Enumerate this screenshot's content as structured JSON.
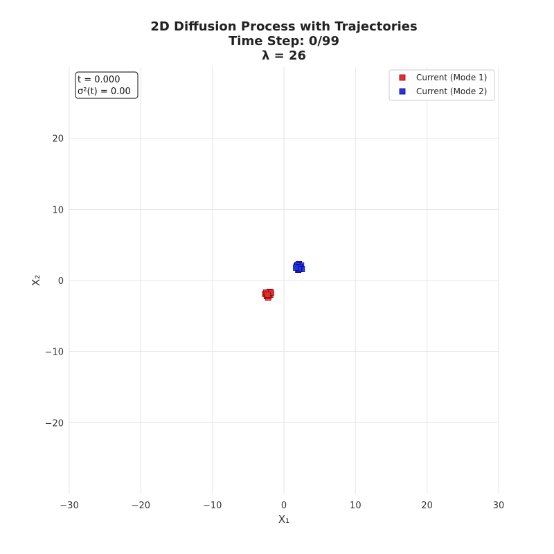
{
  "chart_data": {
    "type": "scatter",
    "title": "2D Diffusion Process with Trajectories",
    "subtitle_lines": [
      "Time Step: 0/99",
      "λ = 26"
    ],
    "xlabel": "X₁",
    "ylabel": "X₂",
    "xlim": [
      -30,
      30
    ],
    "ylim": [
      -30,
      30
    ],
    "xticks": [
      -30,
      -20,
      -10,
      0,
      10,
      20,
      30
    ],
    "yticks": [
      -20,
      -10,
      0,
      10,
      20
    ],
    "grid": true,
    "legend_position": "top-right",
    "info_box": {
      "lines": [
        "t = 0.000",
        "σ²(t) = 0.00"
      ],
      "position": "top-left"
    },
    "series": [
      {
        "name": "Current (Mode 1)",
        "color": "#e53030",
        "edge_color": "#8b0000",
        "marker": "square",
        "points": [
          [
            -2.6,
            -1.9
          ],
          [
            -2.3,
            -1.8
          ],
          [
            -2.0,
            -1.6
          ],
          [
            -2.4,
            -2.2
          ],
          [
            -1.9,
            -2.0
          ],
          [
            -2.2,
            -2.4
          ],
          [
            -2.5,
            -1.7
          ],
          [
            -2.1,
            -2.1
          ],
          [
            -1.8,
            -1.7
          ],
          [
            -2.3,
            -2.0
          ]
        ]
      },
      {
        "name": "Current (Mode 2)",
        "color": "#2535e0",
        "edge_color": "#00008b",
        "marker": "square",
        "points": [
          [
            1.8,
            2.0
          ],
          [
            2.1,
            2.3
          ],
          [
            2.3,
            1.7
          ],
          [
            2.0,
            1.5
          ],
          [
            2.4,
            2.1
          ],
          [
            1.9,
            2.2
          ],
          [
            2.2,
            1.9
          ],
          [
            2.5,
            1.6
          ],
          [
            2.1,
            1.6
          ],
          [
            1.7,
            1.8
          ]
        ]
      }
    ]
  }
}
